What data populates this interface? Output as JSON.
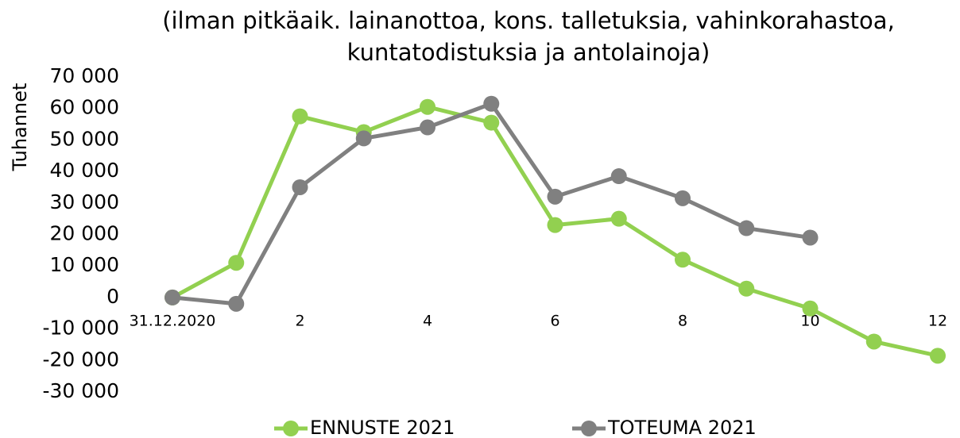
{
  "chart_data": {
    "type": "line",
    "title": "(ilman pitkäaik. lainanottoa, kons. talletuksia, vahinkorahastoa, kuntatodistuksia ja antolainoja)",
    "y_label": "Tuhannet",
    "categories": [
      "31.12.2020",
      null,
      "2",
      null,
      "4",
      null,
      "6",
      null,
      "8",
      null,
      "10",
      null,
      "12"
    ],
    "series": [
      {
        "name": "ENNUSTE 2021",
        "color": "#92d050",
        "values": [
          0,
          11000,
          57500,
          52500,
          60500,
          55500,
          23000,
          25000,
          12000,
          2800,
          -3500,
          -14000,
          -18500
        ]
      },
      {
        "name": "TOTEUMA 2021",
        "color": "#808080",
        "values": [
          0,
          -2000,
          35000,
          50500,
          54000,
          61500,
          32000,
          38500,
          31500,
          22000,
          19000,
          null,
          null
        ]
      }
    ],
    "ylim": [
      -30000,
      70000
    ],
    "yticks": [
      {
        "value": -30000,
        "label": "-30 000"
      },
      {
        "value": -20000,
        "label": "-20 000"
      },
      {
        "value": -10000,
        "label": "-10 000"
      },
      0,
      {
        "value": 10000,
        "label": "10 000"
      },
      {
        "value": 20000,
        "label": "20 000"
      },
      {
        "value": 30000,
        "label": "30 000"
      },
      {
        "value": 40000,
        "label": "40 000"
      },
      {
        "value": 50000,
        "label": "50 000"
      },
      {
        "value": 60000,
        "label": "60 000"
      },
      {
        "value": 70000,
        "label": "70 000"
      }
    ],
    "grid": false,
    "legend": "bottom"
  }
}
